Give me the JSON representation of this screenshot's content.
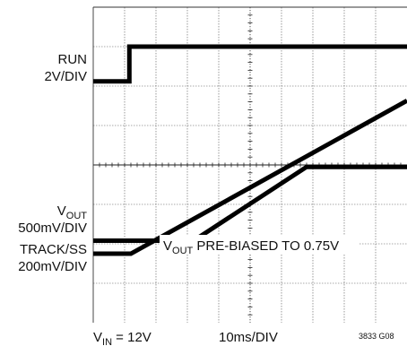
{
  "chart_data": {
    "type": "line",
    "title": "",
    "grid": true,
    "x_divisions": 10,
    "y_divisions": 8,
    "xlim": [
      0,
      10
    ],
    "ylim": [
      0,
      8
    ],
    "channel_labels": [
      {
        "name": "RUN",
        "scale": "2V/DIV"
      },
      {
        "name": "V",
        "sub": "OUT",
        "scale": "500mV/DIV"
      },
      {
        "name": "TRACK/SS",
        "scale": "200mV/DIV"
      }
    ],
    "annotation": {
      "prefix": "V",
      "sub": "OUT",
      "suffix": " PRE-BIASED TO 0.75V"
    },
    "footer": {
      "vin_prefix": "V",
      "vin_sub": "IN",
      "vin_suffix": " = 12V",
      "time_scale": "10ms/DIV",
      "figure_id": "3833 G08"
    },
    "series": [
      {
        "name": "RUN",
        "points": [
          [
            0,
            6.12
          ],
          [
            1.15,
            6.12
          ],
          [
            1.15,
            7.0
          ],
          [
            10,
            7.0
          ]
        ]
      },
      {
        "name": "VOUT",
        "points": [
          [
            0,
            2.08
          ],
          [
            3.2,
            2.08
          ],
          [
            6.8,
            3.95
          ],
          [
            10,
            3.95
          ]
        ]
      },
      {
        "name": "TRACK/SS",
        "points": [
          [
            0,
            1.75
          ],
          [
            1.2,
            1.75
          ],
          [
            10,
            5.63
          ]
        ]
      }
    ]
  }
}
